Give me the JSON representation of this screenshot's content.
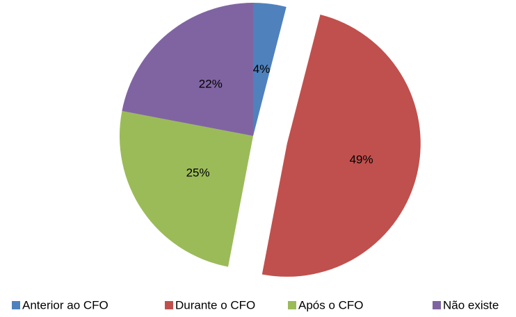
{
  "chart_data": {
    "type": "pie",
    "categories": [
      "Anterior ao CFO",
      "Durante o CFO",
      "Após o CFO",
      "Não existe"
    ],
    "values": [
      4,
      49,
      25,
      22
    ],
    "value_labels": [
      "4%",
      "49%",
      "25%",
      "22%"
    ],
    "colors": [
      "#4f81bd",
      "#c0504d",
      "#9bbb59",
      "#8064a2"
    ],
    "legend": "bottom"
  }
}
